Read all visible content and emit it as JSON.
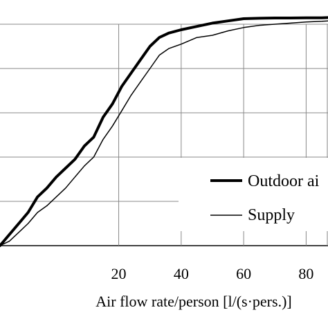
{
  "chart_data": {
    "type": "line",
    "title": "",
    "xlabel": "Air flow rate/person [l/(s·pers.)]",
    "ylabel": "",
    "xlim": [
      -18,
      87
    ],
    "ylim": [
      0,
      100
    ],
    "x_ticks": [
      20,
      40,
      60,
      80
    ],
    "grid": true,
    "legend_position": "bottom-right",
    "series": [
      {
        "name": "Outdoor ai",
        "color": "#000000",
        "line_weight": "thick",
        "x": [
          -18,
          -15,
          -12,
          -9,
          -6,
          -3,
          0,
          3,
          6,
          9,
          12,
          15,
          18,
          21,
          24,
          27,
          30,
          33,
          36,
          40,
          45,
          50,
          55,
          60,
          65,
          70,
          75,
          80,
          85,
          87
        ],
        "y": [
          0,
          5,
          10,
          15,
          22,
          26,
          31,
          35,
          39,
          45,
          49,
          58,
          64,
          72,
          78,
          84,
          90,
          94,
          96,
          97.5,
          99,
          100.5,
          101.5,
          102.5,
          102.7,
          102.8,
          102.8,
          102.9,
          102.9,
          103
        ]
      },
      {
        "name": "Supply",
        "color": "#000000",
        "line_weight": "thin",
        "x": [
          -18,
          -15,
          -12,
          -9,
          -6,
          -3,
          0,
          3,
          6,
          9,
          12,
          15,
          18,
          21,
          24,
          27,
          30,
          33,
          36,
          40,
          45,
          50,
          55,
          60,
          65,
          70,
          75,
          80,
          85,
          87
        ],
        "y": [
          0,
          2,
          6,
          10,
          15,
          18,
          22,
          26,
          31,
          36,
          40,
          48,
          54,
          61,
          68,
          74,
          80,
          86,
          89,
          91,
          94,
          95,
          97,
          98.5,
          99.5,
          100,
          100.5,
          101,
          101.3,
          101.5
        ]
      }
    ]
  }
}
